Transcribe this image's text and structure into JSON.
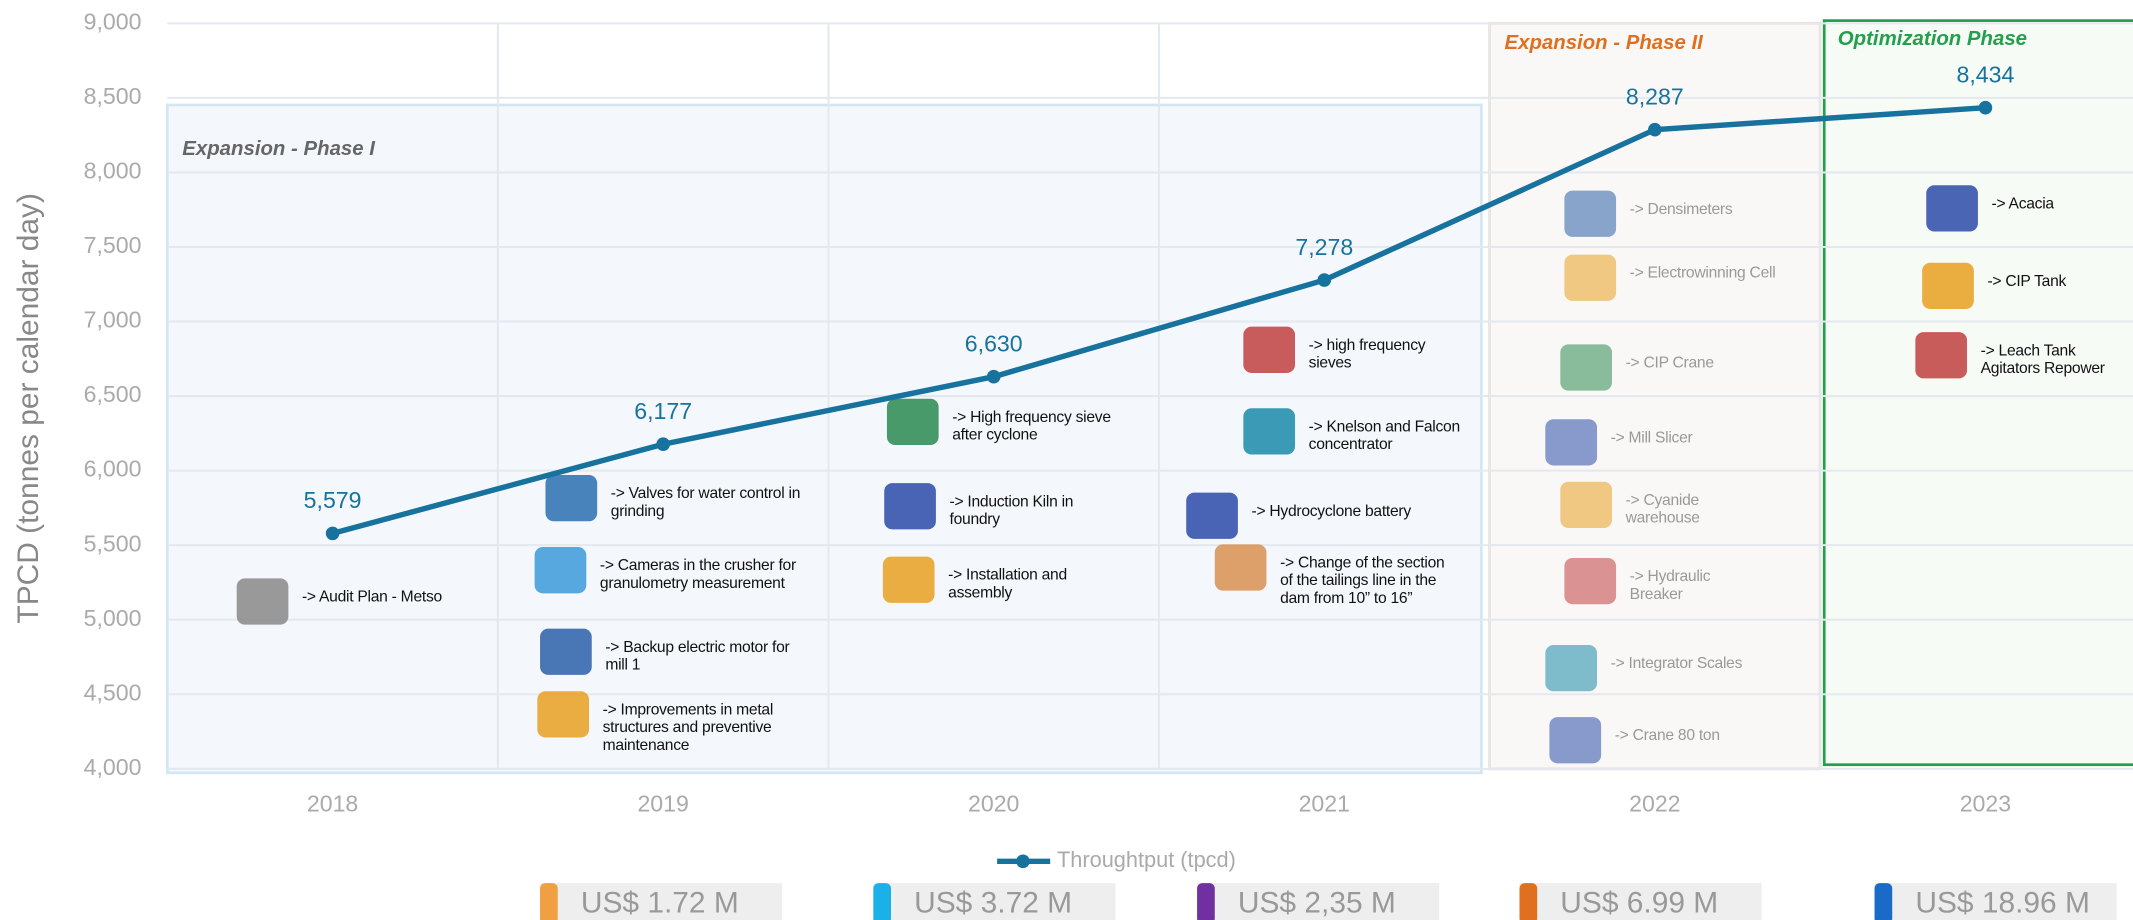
{
  "chart_data": {
    "type": "line",
    "y_label": "TPCD (tonnes per calendar day)",
    "categories": [
      "2018",
      "2019",
      "2020",
      "2021",
      "2022",
      "2023"
    ],
    "series": [
      {
        "name": "Throughtput (tpcd)",
        "color": "#17729e",
        "values": [
          5579,
          6177,
          6630,
          7278,
          8287,
          8434
        ],
        "value_labels": [
          "5,579",
          "6,177",
          "6,630",
          "7,278",
          "8,287",
          "8,434"
        ]
      }
    ],
    "ylim": [
      4000,
      9000
    ],
    "yticks": [
      {
        "value": 4000,
        "label": "4,000"
      },
      {
        "value": 4500,
        "label": "4,500"
      },
      {
        "value": 5000,
        "label": "5,000"
      },
      {
        "value": 5500,
        "label": "5,500"
      },
      {
        "value": 6000,
        "label": "6,000"
      },
      {
        "value": 6500,
        "label": "6,500"
      },
      {
        "value": 7000,
        "label": "7,000"
      },
      {
        "value": 7500,
        "label": "7,500"
      },
      {
        "value": 8000,
        "label": "8,000"
      },
      {
        "value": 8500,
        "label": "8,500"
      },
      {
        "value": 9000,
        "label": "9,000"
      }
    ],
    "grid": true,
    "phases": [
      {
        "title": "Expansion - Phase I",
        "items": [
          "-> Audit Plan - Metso",
          "-> Valves for water control in grinding",
          "-> Cameras in the crusher for granulometry measurement",
          "-> Backup electric motor for mill 1",
          "-> Improvements in metal structures and preventive maintenance",
          "-> High frequency sieve after cyclone",
          "-> Induction Kiln in foundry",
          "-> Installation and assembly",
          "-> high frequency sieves",
          "-> Knelson and Falcon concentrator",
          "-> Hydrocyclone battery",
          "-> Change of the section of the tailings line in the dam from 10” to 16”"
        ]
      },
      {
        "title": "Expansion - Phase II",
        "items": [
          "-> Densimeters",
          "-> Electrowinning Cell",
          "-> CIP Crane",
          "-> Mill Slicer",
          "-> Cyanide warehouse",
          "-> Hydraulic Breaker",
          "-> Integrator Scales",
          "-> Crane 80 ton"
        ]
      },
      {
        "title": "Optimization Phase",
        "items": [
          "-> Acacia",
          "-> CIP Tank",
          "-> Leach Tank Agitators Repower"
        ]
      }
    ],
    "investments": [
      "US$ 1.72 M",
      "US$ 3.72 M",
      "US$ 2,35 M",
      "US$ 6.99 M",
      "US$ 18.96 M"
    ]
  }
}
